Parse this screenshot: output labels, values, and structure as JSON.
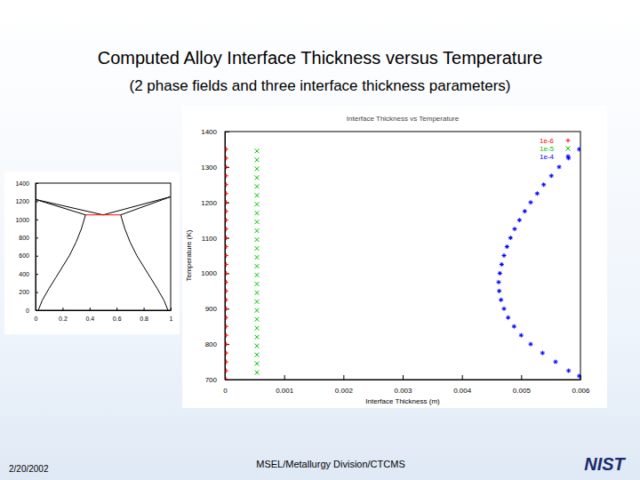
{
  "slide": {
    "title": "Computed Alloy Interface Thickness versus Temperature",
    "subtitle": "(2 phase fields and three interface thickness parameters)",
    "date": "2/20/2002",
    "footer": "MSEL/Metallurgy Division/CTCMS",
    "logo": "NIST"
  },
  "chart_data": [
    {
      "type": "line",
      "xlim": [
        0,
        1
      ],
      "xticks": [
        0,
        0.2,
        0.4,
        0.6,
        0.8,
        1
      ],
      "ylim": [
        0,
        1400
      ],
      "yticks": [
        0,
        200,
        400,
        600,
        800,
        1000,
        1200,
        1400
      ],
      "series": [
        {
          "color": "#000000",
          "x": [
            0,
            0.37
          ],
          "values": [
            1220,
            1050
          ]
        },
        {
          "color": "#000000",
          "x": [
            0,
            0.5
          ],
          "values": [
            1220,
            1050
          ]
        },
        {
          "color": "#000000",
          "x": [
            1,
            0.63
          ],
          "values": [
            1250,
            1050
          ]
        },
        {
          "color": "#000000",
          "x": [
            1,
            0.5
          ],
          "values": [
            1250,
            1050
          ]
        },
        {
          "color": "#000000",
          "x": [
            0.37,
            0.34,
            0.3,
            0.25,
            0.2,
            0.15,
            0.1,
            0.05,
            0.02
          ],
          "values": [
            1050,
            900,
            750,
            600,
            480,
            360,
            240,
            110,
            0
          ]
        },
        {
          "color": "#000000",
          "x": [
            0.63,
            0.66,
            0.7,
            0.75,
            0.8,
            0.85,
            0.9,
            0.95,
            0.98
          ],
          "values": [
            1050,
            900,
            750,
            600,
            480,
            360,
            240,
            110,
            0
          ]
        },
        {
          "color": "#ff0000",
          "x": [
            0.37,
            0.63
          ],
          "values": [
            1050,
            1050
          ]
        }
      ]
    },
    {
      "type": "scatter",
      "title": "Interface Thickness vs Temperature",
      "x_label": "Interface Thickness (m)",
      "y_label": "Temperature (K)",
      "xlim": [
        0,
        0.006
      ],
      "xticks": [
        0,
        0.001,
        0.002,
        0.003,
        0.004,
        0.005,
        0.006
      ],
      "ylim": [
        700,
        1400
      ],
      "yticks": [
        700,
        800,
        900,
        1000,
        1100,
        1200,
        1300,
        1400
      ],
      "legend": "top-right",
      "series": [
        {
          "name": "1e-6",
          "color": "#ff0000",
          "marker": "plus",
          "x": [
            2e-05,
            2e-05,
            2e-05,
            2e-05,
            2e-05,
            2e-05,
            2e-05,
            2e-05,
            2e-05,
            2e-05,
            2e-05,
            2e-05,
            2e-05,
            2e-05,
            2e-05,
            2e-05,
            2e-05,
            2e-05,
            2e-05,
            2e-05,
            2e-05,
            2e-05,
            2e-05,
            2e-05,
            2e-05,
            2e-05,
            2e-05
          ],
          "values": [
            700,
            725,
            750,
            775,
            800,
            825,
            850,
            875,
            900,
            925,
            950,
            975,
            1000,
            1025,
            1050,
            1075,
            1100,
            1125,
            1150,
            1175,
            1200,
            1225,
            1250,
            1275,
            1300,
            1325,
            1350
          ]
        },
        {
          "name": "1e-5",
          "color": "#00c000",
          "marker": "cross",
          "x": [
            0.00054,
            0.00054,
            0.00054,
            0.00054,
            0.00054,
            0.00054,
            0.00054,
            0.00054,
            0.00054,
            0.00054,
            0.00054,
            0.00054,
            0.00054,
            0.00054,
            0.00054,
            0.00054,
            0.00054,
            0.00054,
            0.00054,
            0.00054,
            0.00054,
            0.00054,
            0.00054,
            0.00054,
            0.00054,
            0.00054
          ],
          "values": [
            720,
            745,
            770,
            795,
            820,
            845,
            870,
            895,
            920,
            945,
            970,
            995,
            1020,
            1045,
            1070,
            1095,
            1120,
            1145,
            1170,
            1195,
            1220,
            1245,
            1270,
            1295,
            1320,
            1345
          ]
        },
        {
          "name": "1e-4",
          "color": "#0000ff",
          "marker": "star",
          "x": [
            0.00598,
            0.0058,
            0.00558,
            0.00536,
            0.00516,
            0.005,
            0.00488,
            0.00478,
            0.00471,
            0.00466,
            0.00463,
            0.00462,
            0.00464,
            0.00467,
            0.00471,
            0.00476,
            0.00482,
            0.00489,
            0.00497,
            0.00506,
            0.00516,
            0.00527,
            0.00538,
            0.00551,
            0.00564,
            0.0058,
            0.00598
          ],
          "values": [
            710,
            725,
            750,
            775,
            800,
            825,
            850,
            875,
            900,
            925,
            950,
            975,
            1000,
            1025,
            1050,
            1075,
            1100,
            1125,
            1150,
            1175,
            1200,
            1225,
            1250,
            1275,
            1300,
            1325,
            1350
          ]
        }
      ]
    }
  ]
}
